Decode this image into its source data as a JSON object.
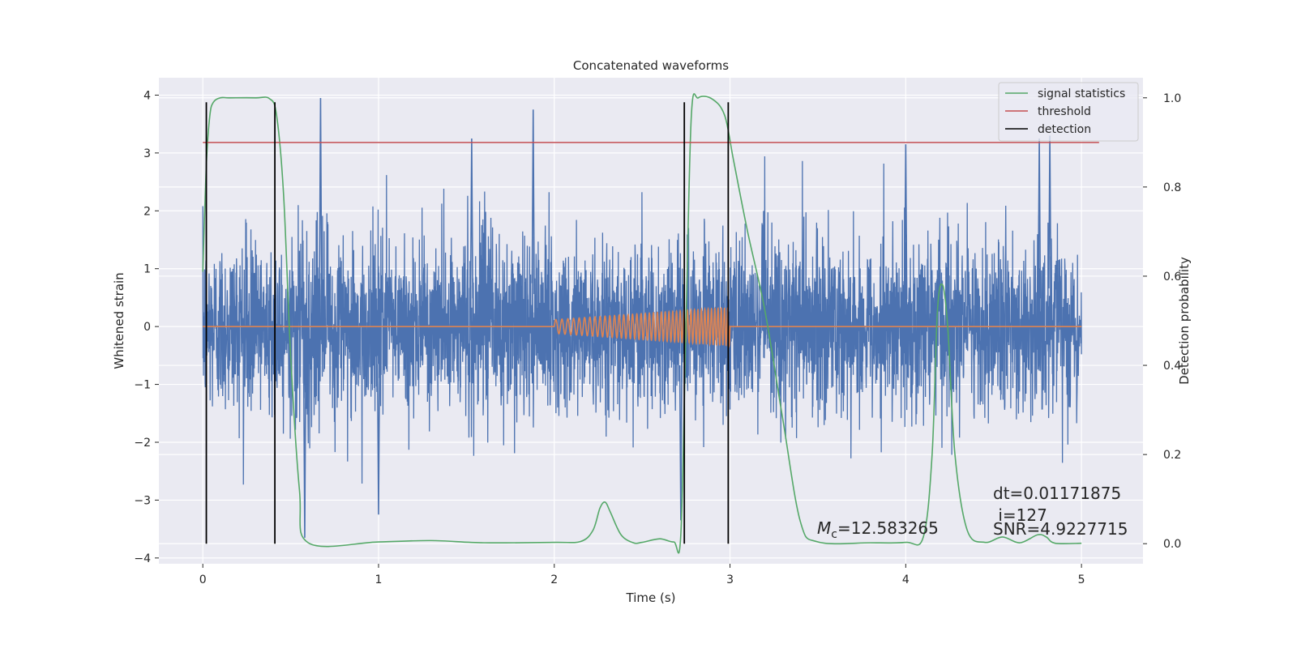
{
  "chart_data": {
    "type": "line",
    "title": "Concatenated waveforms",
    "xlabel": "Time (s)",
    "ylabel": "Whitened strain",
    "ylabel_right": "Detection probability",
    "xlim": [
      -0.25,
      5.35
    ],
    "ylim": [
      -4.1,
      4.3
    ],
    "ylim_right": [
      -0.045,
      1.045
    ],
    "xticks": [
      0,
      1,
      2,
      3,
      4,
      5
    ],
    "xtick_labels": [
      "0",
      "1",
      "2",
      "3",
      "4",
      "5"
    ],
    "yticks": [
      -4,
      -3,
      -2,
      -1,
      0,
      1,
      2,
      3,
      4
    ],
    "ytick_labels": [
      "−4",
      "−3",
      "−2",
      "−1",
      "0",
      "1",
      "2",
      "3",
      "4"
    ],
    "yticks_right": [
      0.0,
      0.2,
      0.4,
      0.6,
      0.8,
      1.0
    ],
    "ytick_labels_right": [
      "0.0",
      "0.2",
      "0.4",
      "0.6",
      "0.8",
      "1.0"
    ],
    "grid": true,
    "legend_position": "top-right",
    "colors": {
      "strain": "#4c72b0",
      "template": "#dd8452",
      "signal_statistics": "#55a868",
      "threshold": "#c44e52",
      "detection": "#000000",
      "background": "#eaeaf2"
    },
    "series": [
      {
        "name": "",
        "axis": "left",
        "description_kind": "noisy whitened strain",
        "x_range": [
          0,
          5
        ],
        "amplitude_std": 0.75,
        "peaks": [
          {
            "x": 0.67,
            "y": 3.95
          },
          {
            "x": 1.88,
            "y": 3.75
          },
          {
            "x": 1.53,
            "y": 3.25
          },
          {
            "x": 4.0,
            "y": 3.15
          },
          {
            "x": 4.82,
            "y": 3.3
          },
          {
            "x": 4.76,
            "y": 3.25
          },
          {
            "x": 0.58,
            "y": -3.65
          },
          {
            "x": 1.0,
            "y": -3.25
          },
          {
            "x": 2.72,
            "y": -3.35
          }
        ]
      },
      {
        "name": "",
        "axis": "left",
        "description_kind": "chirp template",
        "x_range": [
          0,
          5
        ],
        "chirp_start": 2.0,
        "chirp_end": 3.0,
        "amplitude_start": 0.12,
        "amplitude_end": 0.33
      },
      {
        "name": "signal statistics",
        "axis": "right",
        "x": [
          0.0,
          0.02,
          0.04,
          0.06,
          0.1,
          0.15,
          0.3,
          0.38,
          0.42,
          0.46,
          0.5,
          0.55,
          0.6,
          1.0,
          1.3,
          1.6,
          2.0,
          2.15,
          2.22,
          2.26,
          2.29,
          2.32,
          2.38,
          2.45,
          2.5,
          2.6,
          2.68,
          2.72,
          2.75,
          2.78,
          2.82,
          2.9,
          2.97,
          3.02,
          3.1,
          3.2,
          3.3,
          3.4,
          3.5,
          3.8,
          4.0,
          4.1,
          4.15,
          4.18,
          4.21,
          4.24,
          4.28,
          4.35,
          4.45,
          4.55,
          4.65,
          4.75,
          4.8,
          4.85,
          5.0
        ],
        "y": [
          0.61,
          0.85,
          0.96,
          0.99,
          1.0,
          1.0,
          1.0,
          0.998,
          0.96,
          0.78,
          0.42,
          0.12,
          0.002,
          0.004,
          0.007,
          0.002,
          0.003,
          0.005,
          0.03,
          0.08,
          0.093,
          0.07,
          0.02,
          0.002,
          0.003,
          0.011,
          0.004,
          0.02,
          0.5,
          0.96,
          1.0,
          0.997,
          0.96,
          0.86,
          0.7,
          0.52,
          0.28,
          0.05,
          0.004,
          0.002,
          0.003,
          0.015,
          0.2,
          0.52,
          0.58,
          0.48,
          0.2,
          0.03,
          0.003,
          0.015,
          0.002,
          0.02,
          0.015,
          0.001,
          0.001
        ]
      },
      {
        "name": "threshold",
        "axis": "right",
        "x": [
          0.0,
          5.1
        ],
        "y": [
          0.9,
          0.9
        ]
      },
      {
        "name": "detection",
        "axis": "right",
        "x_lines": [
          0.02,
          0.41,
          2.74,
          2.99
        ],
        "y_range": [
          0.0,
          0.99
        ]
      }
    ],
    "annotations": {
      "mc_symbol": "M",
      "mc_sub": "c",
      "mc_value": "=12.583265",
      "dt": "dt=0.01171875",
      "i": " i=127",
      "snr": "SNR=4.9227715"
    }
  }
}
